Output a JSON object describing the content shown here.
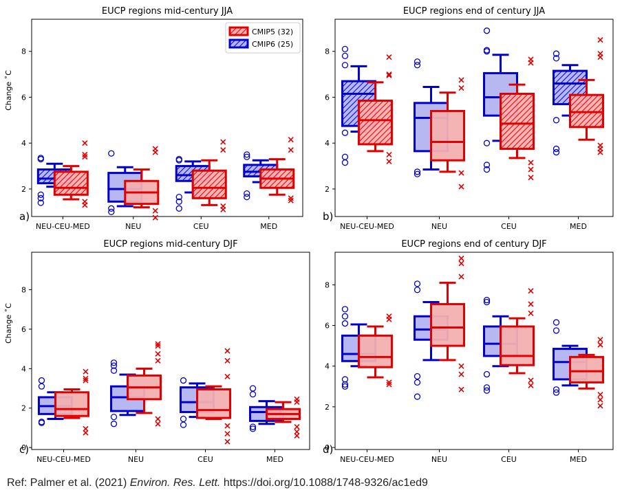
{
  "figure": {
    "reference_prefix": "Ref: Palmer et al. (2021) ",
    "reference_journal": "Environ. Res. Lett.",
    "reference_doi": " https://doi.org/10.1088/1748-9326/ac1ed9"
  },
  "chart_data": [
    {
      "type": "box",
      "panel": "a)",
      "title": "EUCP regions mid-century JJA",
      "ylabel": "Change ˚C",
      "xlabel": "",
      "categories": [
        "NEU-CEU-MED",
        "NEU",
        "CEU",
        "MED"
      ],
      "ylim": [
        0.8,
        9.4
      ],
      "yticks": [
        2,
        4,
        6,
        8
      ],
      "legend": {
        "position": "top-right",
        "entries": [
          "CMIP5 (32)",
          "CMIP6 (25)"
        ]
      },
      "series": [
        {
          "name": "CMIP6 (25)",
          "color": "#0000cc",
          "hatched_cats": [
            0,
            2,
            3
          ],
          "boxes": [
            {
              "whislo": 2.1,
              "q1": 2.25,
              "med": 2.45,
              "q3": 2.85,
              "whishi": 3.1,
              "fliers": [
                3.3,
                3.35,
                1.75,
                1.6,
                1.4
              ]
            },
            {
              "whislo": 1.25,
              "q1": 1.45,
              "med": 2.0,
              "q3": 2.7,
              "whishi": 2.95,
              "fliers": [
                3.55,
                1.15,
                1.0
              ]
            },
            {
              "whislo": 1.85,
              "q1": 2.35,
              "med": 2.6,
              "q3": 3.0,
              "whishi": 3.2,
              "fliers": [
                3.3,
                3.25,
                1.65,
                1.45,
                1.15
              ]
            },
            {
              "whislo": 2.3,
              "q1": 2.55,
              "med": 2.75,
              "q3": 3.05,
              "whishi": 3.25,
              "fliers": [
                3.5,
                3.4,
                1.8,
                1.65
              ]
            }
          ]
        },
        {
          "name": "CMIP5 (32)",
          "color": "#e00000",
          "hatched_cats": [
            0,
            2,
            3
          ],
          "boxes": [
            {
              "whislo": 1.55,
              "q1": 1.75,
              "med": 2.05,
              "q3": 2.75,
              "whishi": 3.0,
              "fliers": [
                4.0,
                3.5,
                3.4,
                1.45,
                1.3
              ]
            },
            {
              "whislo": 1.2,
              "q1": 1.35,
              "med": 1.85,
              "q3": 2.35,
              "whishi": 2.85,
              "fliers": [
                3.75,
                3.6,
                1.05,
                0.75
              ]
            },
            {
              "whislo": 1.3,
              "q1": 1.6,
              "med": 2.05,
              "q3": 2.8,
              "whishi": 3.25,
              "fliers": [
                4.05,
                3.7,
                1.25,
                1.1
              ]
            },
            {
              "whislo": 1.75,
              "q1": 2.05,
              "med": 2.45,
              "q3": 2.85,
              "whishi": 3.3,
              "fliers": [
                4.15,
                3.7,
                1.6,
                1.5
              ]
            }
          ]
        }
      ]
    },
    {
      "type": "box",
      "panel": "b)",
      "title": "EUCP regions end of century JJA",
      "ylabel": "",
      "xlabel": "",
      "categories": [
        "NEU-CEU-MED",
        "NEU",
        "CEU",
        "MED"
      ],
      "ylim": [
        0.8,
        9.4
      ],
      "yticks": [
        2,
        4,
        6,
        8
      ],
      "series": [
        {
          "name": "CMIP6 (25)",
          "color": "#0000cc",
          "hatched_cats": [
            0,
            3
          ],
          "boxes": [
            {
              "whislo": 4.5,
              "q1": 4.75,
              "med": 6.15,
              "q3": 6.7,
              "whishi": 7.35,
              "fliers": [
                8.1,
                7.8,
                7.4,
                3.4,
                3.15,
                4.45
              ]
            },
            {
              "whislo": 2.85,
              "q1": 3.65,
              "med": 5.1,
              "q3": 5.75,
              "whishi": 6.45,
              "fliers": [
                7.55,
                7.4,
                2.75,
                2.65
              ]
            },
            {
              "whislo": 4.1,
              "q1": 5.2,
              "med": 6.0,
              "q3": 7.05,
              "whishi": 7.85,
              "fliers": [
                8.9,
                8.05,
                8.0,
                3.05,
                2.85,
                4.0
              ]
            },
            {
              "whislo": 5.2,
              "q1": 5.7,
              "med": 6.6,
              "q3": 7.15,
              "whishi": 7.4,
              "fliers": [
                7.9,
                7.7,
                5.0,
                3.75,
                3.6
              ]
            }
          ]
        },
        {
          "name": "CMIP5 (32)",
          "color": "#e00000",
          "hatched_cats": [
            0,
            2,
            3
          ],
          "boxes": [
            {
              "whislo": 3.65,
              "q1": 3.95,
              "med": 5.0,
              "q3": 5.85,
              "whishi": 6.65,
              "fliers": [
                7.75,
                7.0,
                6.95,
                3.5,
                3.2
              ]
            },
            {
              "whislo": 2.75,
              "q1": 3.25,
              "med": 4.05,
              "q3": 5.4,
              "whishi": 6.2,
              "fliers": [
                6.75,
                6.4,
                2.7,
                2.1
              ]
            },
            {
              "whislo": 3.35,
              "q1": 3.75,
              "med": 4.85,
              "q3": 6.15,
              "whishi": 6.55,
              "fliers": [
                7.65,
                7.5,
                3.15,
                2.85,
                2.5
              ]
            },
            {
              "whislo": 4.15,
              "q1": 4.7,
              "med": 5.35,
              "q3": 6.1,
              "whishi": 6.75,
              "fliers": [
                8.5,
                7.9,
                7.75,
                3.9,
                3.75,
                3.6
              ]
            }
          ]
        }
      ]
    },
    {
      "type": "box",
      "panel": "c)",
      "title": "EUCP regions mid-century DJF",
      "ylabel": "Change ˚C",
      "xlabel": "",
      "categories": [
        "NEU-CEU-MED",
        "NEU",
        "CEU",
        "MED"
      ],
      "ylim": [
        -0.1,
        9.9
      ],
      "yticks": [
        0,
        2,
        4,
        6,
        8
      ],
      "series": [
        {
          "name": "CMIP6 (25)",
          "color": "#0000cc",
          "hatched_cats": [],
          "boxes": [
            {
              "whislo": 1.45,
              "q1": 1.7,
              "med": 2.1,
              "q3": 2.55,
              "whishi": 2.8,
              "fliers": [
                3.4,
                3.1,
                1.3,
                1.25
              ]
            },
            {
              "whislo": 1.65,
              "q1": 1.85,
              "med": 2.55,
              "q3": 3.1,
              "whishi": 3.7,
              "fliers": [
                4.3,
                4.15,
                3.9,
                1.55,
                1.2
              ]
            },
            {
              "whislo": 1.55,
              "q1": 1.8,
              "med": 2.3,
              "q3": 3.05,
              "whishi": 3.25,
              "fliers": [
                3.4,
                1.45,
                1.15
              ]
            },
            {
              "whislo": 1.2,
              "q1": 1.35,
              "med": 1.8,
              "q3": 2.05,
              "whishi": 2.35,
              "fliers": [
                3.0,
                2.7,
                1.05,
                0.95
              ]
            }
          ]
        },
        {
          "name": "CMIP5 (32)",
          "color": "#e00000",
          "hatched_cats": [],
          "boxes": [
            {
              "whislo": 1.5,
              "q1": 1.6,
              "med": 1.95,
              "q3": 2.8,
              "whishi": 2.95,
              "fliers": [
                3.85,
                3.5,
                3.4,
                0.95,
                0.75
              ]
            },
            {
              "whislo": 1.75,
              "q1": 2.45,
              "med": 3.05,
              "q3": 3.65,
              "whishi": 4.0,
              "fliers": [
                5.25,
                5.15,
                4.75,
                4.4,
                1.45,
                1.2
              ]
            },
            {
              "whislo": 1.45,
              "q1": 1.5,
              "med": 1.9,
              "q3": 2.95,
              "whishi": 3.1,
              "fliers": [
                4.9,
                4.4,
                3.6,
                1.1,
                0.7,
                0.3
              ]
            },
            {
              "whislo": 1.3,
              "q1": 1.45,
              "med": 1.7,
              "q3": 1.95,
              "whishi": 2.3,
              "fliers": [
                2.45,
                2.3,
                1.05,
                0.8,
                0.6
              ]
            }
          ]
        }
      ]
    },
    {
      "type": "box",
      "panel": "d)",
      "title": "EUCP regions end of century DJF",
      "ylabel": "",
      "xlabel": "",
      "categories": [
        "NEU-CEU-MED",
        "NEU",
        "CEU",
        "MED"
      ],
      "ylim": [
        -0.1,
        9.6
      ],
      "yticks": [
        0,
        2,
        4,
        6,
        8
      ],
      "series": [
        {
          "name": "CMIP6 (25)",
          "color": "#0000cc",
          "hatched_cats": [],
          "boxes": [
            {
              "whislo": 4.0,
              "q1": 4.25,
              "med": 4.6,
              "q3": 5.5,
              "whishi": 6.05,
              "fliers": [
                6.8,
                6.45,
                6.1,
                3.35,
                3.1,
                3.0
              ]
            },
            {
              "whislo": 4.3,
              "q1": 5.3,
              "med": 5.8,
              "q3": 6.45,
              "whishi": 7.15,
              "fliers": [
                8.05,
                7.75,
                3.5,
                3.2,
                2.5
              ]
            },
            {
              "whislo": 4.0,
              "q1": 4.5,
              "med": 5.1,
              "q3": 5.95,
              "whishi": 6.45,
              "fliers": [
                7.25,
                7.15,
                3.6,
                2.95,
                2.8
              ]
            },
            {
              "whislo": 3.05,
              "q1": 3.35,
              "med": 4.2,
              "q3": 4.85,
              "whishi": 5.0,
              "fliers": [
                6.15,
                5.75,
                2.85,
                2.7
              ]
            }
          ]
        },
        {
          "name": "CMIP5 (32)",
          "color": "#e00000",
          "hatched_cats": [],
          "boxes": [
            {
              "whislo": 3.45,
              "q1": 3.95,
              "med": 4.45,
              "q3": 5.5,
              "whishi": 5.95,
              "fliers": [
                6.45,
                6.3,
                3.2,
                3.1
              ]
            },
            {
              "whislo": 4.3,
              "q1": 5.0,
              "med": 5.9,
              "q3": 7.05,
              "whishi": 8.1,
              "fliers": [
                9.3,
                9.05,
                8.4,
                4.0,
                3.6,
                2.85
              ]
            },
            {
              "whislo": 3.65,
              "q1": 4.05,
              "med": 4.5,
              "q3": 5.95,
              "whishi": 6.35,
              "fliers": [
                7.7,
                7.05,
                6.6,
                3.3,
                3.05
              ]
            },
            {
              "whislo": 2.9,
              "q1": 3.2,
              "med": 3.75,
              "q3": 4.45,
              "whishi": 4.55,
              "fliers": [
                5.3,
                5.05,
                2.6,
                2.35,
                2.05
              ]
            }
          ]
        }
      ]
    }
  ]
}
